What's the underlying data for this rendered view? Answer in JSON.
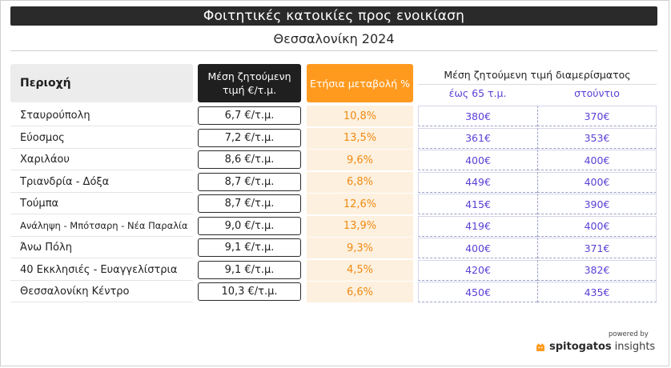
{
  "header": {
    "title": "Φοιτητικές κατοικίες προς ενοικίαση",
    "subtitle": "Θεσσαλονίκη 2024"
  },
  "columns": {
    "area": "Περιοχή",
    "price": "Μέση ζητούμενη τιμή €/τ.μ.",
    "change": "Ετήσια μεταβολή %",
    "apartment": "Μέση ζητούμενη τιμή διαμερίσματος",
    "apt_up_to_65": "έως 65 τ.μ.",
    "apt_studio": "στούντιο"
  },
  "rows": [
    {
      "area": "Σταυρούπολη",
      "price": "6,7 €/τ.μ.",
      "change": "10,8%",
      "apt65": "380€",
      "studio": "370€"
    },
    {
      "area": "Εύοσμος",
      "price": "7,2 €/τ.μ.",
      "change": "13,5%",
      "apt65": "361€",
      "studio": "353€"
    },
    {
      "area": "Χαριλάου",
      "price": "8,6 €/τ.μ.",
      "change": "9,6%",
      "apt65": "400€",
      "studio": "400€"
    },
    {
      "area": "Τριανδρία - Δόξα",
      "price": "8,7 €/τ.μ.",
      "change": "6,8%",
      "apt65": "449€",
      "studio": "400€"
    },
    {
      "area": "Τούμπα",
      "price": "8,7 €/τ.μ.",
      "change": "12,6%",
      "apt65": "415€",
      "studio": "390€"
    },
    {
      "area": "Ανάληψη - Μπότσαρη - Νέα Παραλία",
      "price": "9,0 €/τ.μ.",
      "change": "13,9%",
      "apt65": "419€",
      "studio": "400€"
    },
    {
      "area": "Άνω Πόλη",
      "price": "9,1 €/τ.μ.",
      "change": "9,3%",
      "apt65": "400€",
      "studio": "371€"
    },
    {
      "area": "40 Εκκλησιές - Ευαγγελίστρια",
      "price": "9,1 €/τ.μ.",
      "change": "4,5%",
      "apt65": "420€",
      "studio": "382€"
    },
    {
      "area": "Θεσσαλονίκη Κέντρο",
      "price": "10,3 €/τ.μ.",
      "change": "6,6%",
      "apt65": "450€",
      "studio": "435€"
    }
  ],
  "footer": {
    "powered_by": "powered by",
    "brand_name": "spitogatos",
    "brand_suffix": "insights"
  },
  "colors": {
    "dark": "#1f1f1f",
    "accent_orange": "#ff9a1f",
    "accent_purple": "#5b3fd6"
  }
}
